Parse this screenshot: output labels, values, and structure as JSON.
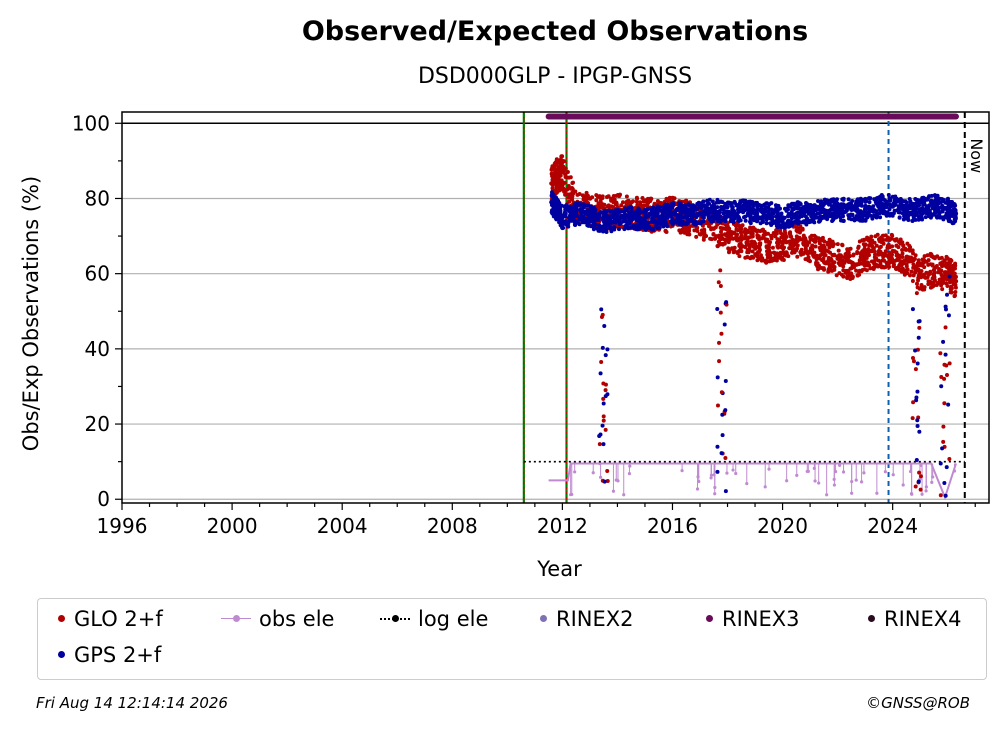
{
  "title": "Observed/Expected Observations",
  "subtitle": "DSD000GLP - IPGP-GNSS",
  "footer": {
    "timestamp": "Fri Aug 14 12:14:14 2026",
    "credit": "©GNSS@ROB"
  },
  "legend": [
    {
      "label": "GLO 2+f",
      "symbol": "dot",
      "color": "#b20000"
    },
    {
      "label": "obs ele",
      "symbol": "line-dot",
      "color": "#c08ad0"
    },
    {
      "label": "log ele",
      "symbol": "dotted",
      "color": "#000000"
    },
    {
      "label": "RINEX2",
      "symbol": "dot",
      "color": "#8070b8"
    },
    {
      "label": "RINEX3",
      "symbol": "dot",
      "color": "#6a0a5a"
    },
    {
      "label": "RINEX4",
      "symbol": "dot",
      "color": "#2a0a20"
    },
    {
      "label": "GPS 2+f",
      "symbol": "dot",
      "color": "#0000a0"
    }
  ],
  "chart_data": {
    "type": "scatter",
    "title": "Observed/Expected Observations",
    "subtitle": "DSD000GLP - IPGP-GNSS",
    "xlabel": "Year",
    "ylabel": "Obs/Exp Observations (%)",
    "xlim": [
      1996,
      2027.5
    ],
    "ylim": [
      -1,
      103
    ],
    "x_ticks": [
      1996,
      2000,
      2004,
      2008,
      2012,
      2016,
      2020,
      2024
    ],
    "y_ticks": [
      0,
      20,
      40,
      60,
      80,
      100
    ],
    "grid": "horizontal",
    "hline_100": 100,
    "now_label": "Now",
    "now_x": 2026.62,
    "vlines": [
      {
        "x": 2010.6,
        "color": "#008000",
        "style": "solid+red-dotted"
      },
      {
        "x": 2012.15,
        "color": "#008000",
        "style": "solid+red-dotted"
      },
      {
        "x": 2023.85,
        "color": "#1060b0",
        "style": "dashed"
      }
    ],
    "series": [
      {
        "name": "GLO 2+f",
        "color": "#b20000",
        "x": [
          2011.6,
          2011.8,
          2012.0,
          2012.5,
          2013.0,
          2013.5,
          2014.0,
          2014.5,
          2015.0,
          2015.5,
          2016.0,
          2016.5,
          2017.0,
          2017.5,
          2018.0,
          2018.5,
          2019.0,
          2019.5,
          2020.0,
          2020.5,
          2021.0,
          2021.5,
          2022.0,
          2022.5,
          2023.0,
          2023.5,
          2024.0,
          2024.5,
          2025.0,
          2025.5,
          2026.0,
          2026.3
        ],
        "y": [
          84,
          86,
          87,
          78,
          77,
          76,
          77,
          76,
          76,
          75,
          76,
          75,
          74,
          72,
          70,
          69,
          68,
          67,
          68,
          69,
          66,
          65,
          64,
          63,
          65,
          66,
          66,
          64,
          60,
          61,
          60,
          58
        ]
      },
      {
        "name": "GPS 2+f",
        "color": "#0000a0",
        "x": [
          2011.6,
          2011.8,
          2012.0,
          2012.5,
          2013.0,
          2013.5,
          2014.0,
          2014.5,
          2015.0,
          2015.5,
          2016.0,
          2016.5,
          2017.0,
          2017.5,
          2018.0,
          2018.5,
          2019.0,
          2019.5,
          2020.0,
          2020.5,
          2021.0,
          2021.5,
          2022.0,
          2022.5,
          2023.0,
          2023.5,
          2024.0,
          2024.5,
          2025.0,
          2025.5,
          2026.0,
          2026.3
        ],
        "y": [
          79,
          77,
          75,
          76,
          75,
          74,
          74,
          75,
          74,
          75,
          76,
          76,
          76,
          77,
          76,
          77,
          76,
          76,
          75,
          76,
          76,
          77,
          77,
          77,
          77,
          78,
          78,
          77,
          77,
          78,
          77,
          76
        ]
      },
      {
        "name": "obs ele",
        "color": "#c08ad0",
        "x": [
          2011.5,
          2012.2,
          2012.3,
          2016.0,
          2020.0,
          2024.0,
          2025.4,
          2025.9,
          2026.3
        ],
        "y": [
          5,
          5,
          9.5,
          9.5,
          9.5,
          9.5,
          9.5,
          0.5,
          9.5
        ]
      },
      {
        "name": "log ele",
        "color": "#000000",
        "x": [
          2010.6,
          2026.62
        ],
        "y": [
          10,
          10
        ]
      },
      {
        "name": "RINEX3",
        "color": "#6a0a5a",
        "x": [
          2011.5,
          2026.3
        ],
        "y": [
          101.8,
          101.8
        ]
      }
    ],
    "dropouts": [
      {
        "x": 2013.5,
        "y": [
          3,
          58
        ]
      },
      {
        "x": 2017.8,
        "y": [
          2,
          62
        ]
      },
      {
        "x": 2024.9,
        "y": [
          1,
          60
        ]
      },
      {
        "x": 2025.9,
        "y": [
          0,
          60
        ]
      }
    ]
  }
}
